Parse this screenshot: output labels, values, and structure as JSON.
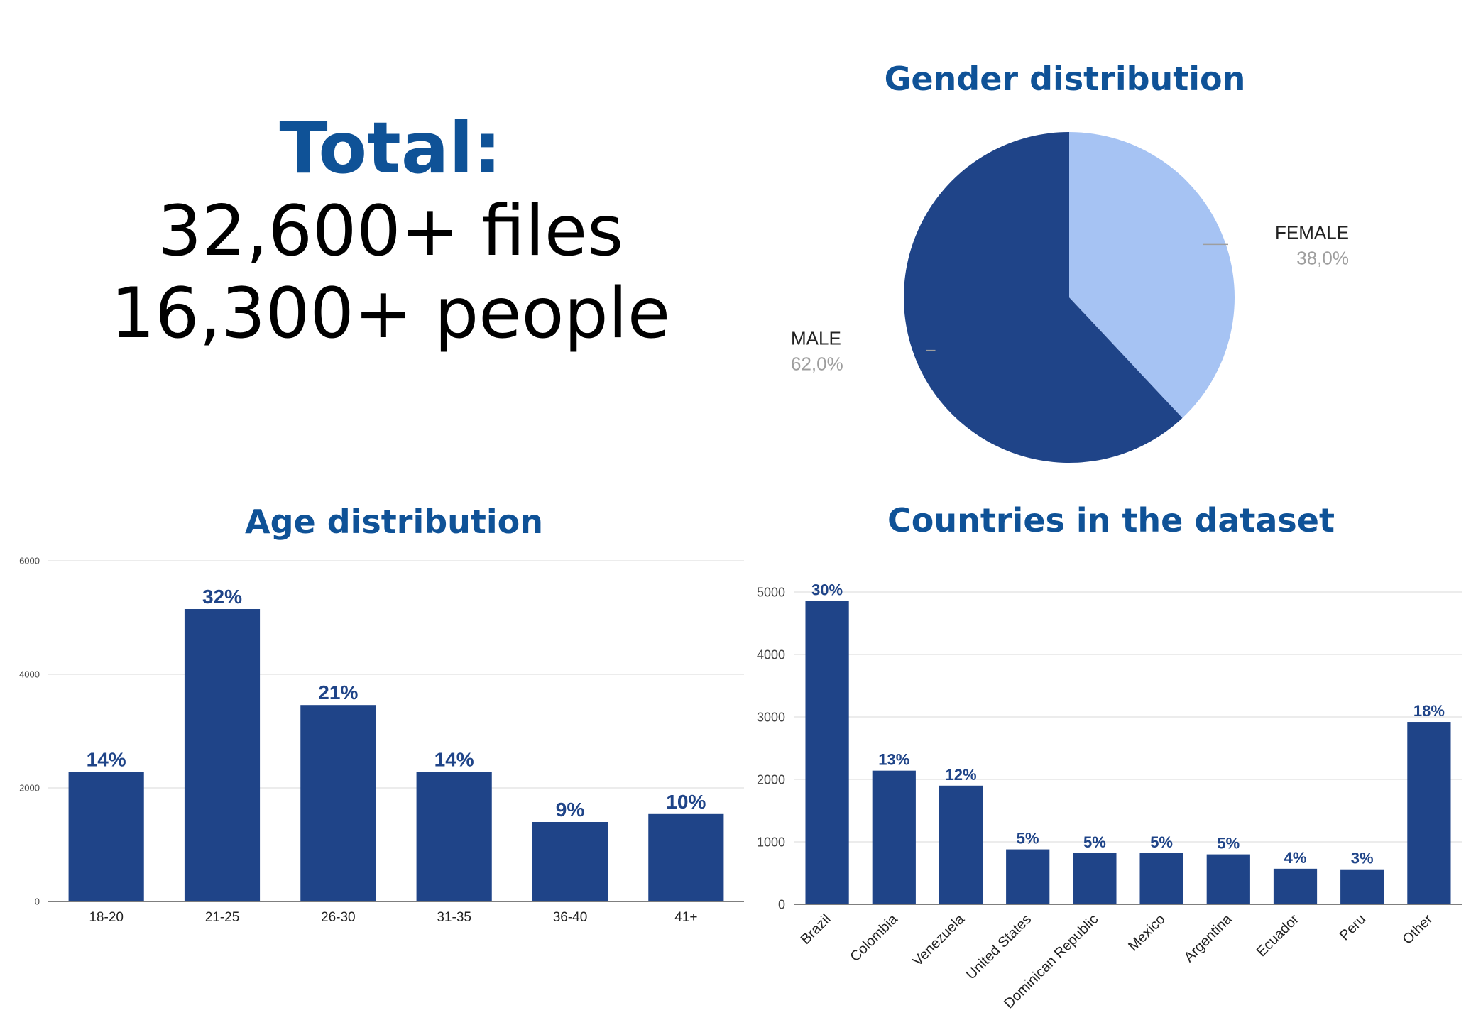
{
  "summary": {
    "title": "Total:",
    "files": "32,600+ files",
    "people": "16,300+ people"
  },
  "colors": {
    "title_blue": "#0f5297",
    "bar_blue": "#1f4488",
    "pie_male": "#1f4488",
    "pie_female": "#a6c3f3",
    "grid": "#e0e0e0",
    "pct_label": "#9e9e9e"
  },
  "chart_data": [
    {
      "id": "gender",
      "type": "pie",
      "title": "Gender distribution",
      "slices": [
        {
          "label": "FEMALE",
          "value": 38.0,
          "value_label": "38,0%"
        },
        {
          "label": "MALE",
          "value": 62.0,
          "value_label": "62,0%"
        }
      ],
      "start_angle_deg": 0
    },
    {
      "id": "age",
      "type": "bar",
      "title": "Age distribution",
      "categories": [
        "18-20",
        "21-25",
        "26-30",
        "31-35",
        "36-40",
        "41+"
      ],
      "values": [
        2280,
        5150,
        3460,
        2280,
        1400,
        1540
      ],
      "data_labels": [
        "14%",
        "32%",
        "21%",
        "14%",
        "9%",
        "10%"
      ],
      "yticks": [
        0,
        2000,
        4000,
        6000
      ],
      "ylim": [
        0,
        6000
      ],
      "grid": true
    },
    {
      "id": "countries",
      "type": "bar",
      "title": "Countries in the dataset",
      "categories": [
        "Brazil",
        "Colombia",
        "Venezuela",
        "United States",
        "Dominican Republic",
        "Mexico",
        "Argentina",
        "Ecuador",
        "Peru",
        "Other"
      ],
      "values": [
        4860,
        2140,
        1900,
        880,
        820,
        820,
        800,
        570,
        560,
        2920
      ],
      "data_labels": [
        "30%",
        "13%",
        "12%",
        "5%",
        "5%",
        "5%",
        "5%",
        "4%",
        "3%",
        "18%"
      ],
      "yticks": [
        0,
        1000,
        2000,
        3000,
        4000,
        5000
      ],
      "ylim": [
        0,
        5000
      ],
      "grid": true
    }
  ]
}
